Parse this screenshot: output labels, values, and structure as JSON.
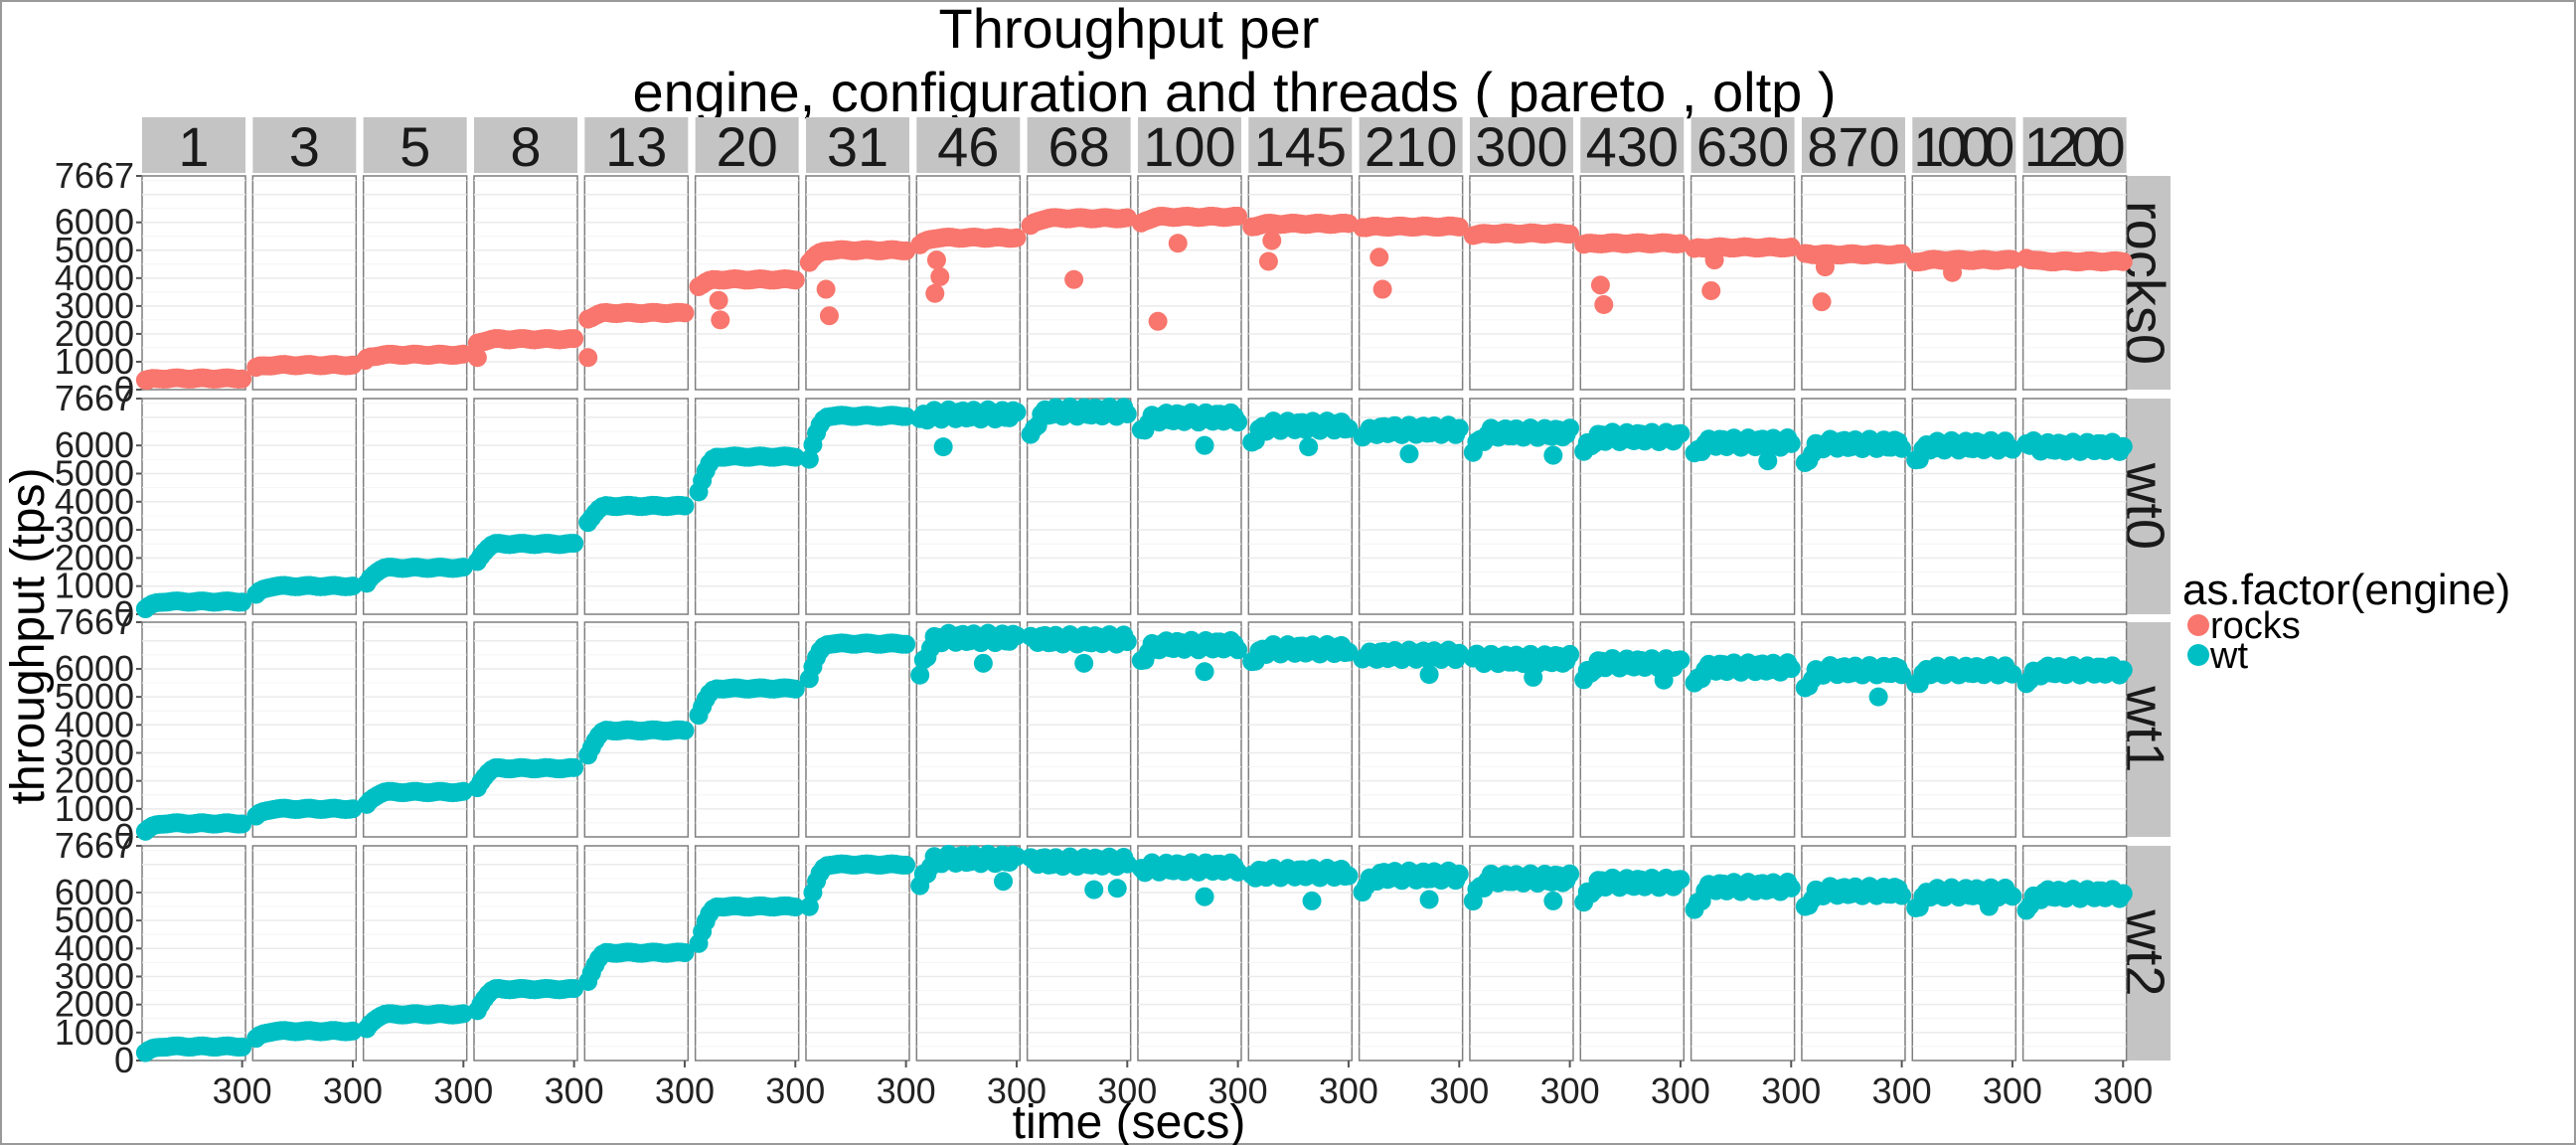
{
  "chart_data": {
    "type": "scatter",
    "title_lines": [
      "Throughput per",
      "engine, configuration and threads ( pareto , oltp )"
    ],
    "xlabel": "time (secs)",
    "ylabel": "throughput (tps)",
    "xlim": [
      0,
      310
    ],
    "ylim": [
      0,
      7667
    ],
    "x_ticks": [
      300
    ],
    "y_ticks": [
      0,
      1000,
      2000,
      3000,
      4000,
      5000,
      6000,
      7667
    ],
    "grid": true,
    "columns": [
      "1",
      "3",
      "5",
      "8",
      "13",
      "20",
      "31",
      "46",
      "68",
      "100",
      "145",
      "210",
      "300",
      "430",
      "630",
      "870",
      "1000",
      "1200"
    ],
    "rows": [
      {
        "label": "rocks0",
        "engine": "rocks"
      },
      {
        "label": "wt0",
        "engine": "wt"
      },
      {
        "label": "wt1",
        "engine": "wt"
      },
      {
        "label": "wt2",
        "engine": "wt"
      }
    ],
    "legend": {
      "title": "as.factor(engine)",
      "placement": "right",
      "entries": [
        {
          "name": "rocks",
          "color": "#F8766D"
        },
        {
          "name": "wt",
          "color": "#00BFC4"
        }
      ]
    },
    "panels": {
      "rocks0": [
        {
          "start": 320,
          "level": 400,
          "dips": [
            [
              15,
              330
            ]
          ]
        },
        {
          "start": 770,
          "level": 880,
          "dips": []
        },
        {
          "start": 1080,
          "level": 1250,
          "dips": [
            [
              5,
              1050
            ]
          ]
        },
        {
          "start": 1620,
          "level": 1810,
          "dips": [
            [
              10,
              1150
            ]
          ]
        },
        {
          "start": 2450,
          "level": 2750,
          "dips": [
            [
              10,
              1150
            ]
          ]
        },
        {
          "start": 3600,
          "level": 3950,
          "dips": [
            [
              70,
              3200
            ],
            [
              75,
              2500
            ]
          ]
        },
        {
          "start": 4400,
          "level": 5000,
          "dips": [
            [
              60,
              3600
            ],
            [
              70,
              2650
            ]
          ]
        },
        {
          "start": 5100,
          "level": 5450,
          "dips": [
            [
              60,
              4650
            ],
            [
              70,
              4050
            ],
            [
              55,
              3450
            ]
          ]
        },
        {
          "start": 5800,
          "level": 6150,
          "dips": [
            [
              140,
              3950
            ]
          ]
        },
        {
          "start": 5900,
          "level": 6200,
          "dips": [
            [
              120,
              5250
            ],
            [
              60,
              2450
            ]
          ]
        },
        {
          "start": 5800,
          "level": 5950,
          "dips": [
            [
              70,
              5350
            ],
            [
              60,
              4600
            ]
          ]
        },
        {
          "start": 5800,
          "level": 5850,
          "dips": [
            [
              60,
              4750
            ],
            [
              70,
              3600
            ]
          ]
        },
        {
          "start": 5500,
          "level": 5600,
          "dips": []
        },
        {
          "start": 5200,
          "level": 5250,
          "dips": [
            [
              60,
              3750
            ],
            [
              70,
              3050
            ]
          ]
        },
        {
          "start": 5050,
          "level": 5100,
          "dips": [
            [
              70,
              4650
            ],
            [
              60,
              3550
            ]
          ]
        },
        {
          "start": 4900,
          "level": 4850,
          "dips": [
            [
              70,
              4400
            ],
            [
              60,
              3150
            ]
          ]
        },
        {
          "start": 4550,
          "level": 4650,
          "dips": [
            [
              120,
              4200
            ]
          ]
        },
        {
          "start": 4750,
          "level": 4600,
          "dips": []
        }
      ],
      "wt0": [
        {
          "start": 100,
          "level": 450,
          "dips": []
        },
        {
          "start": 600,
          "level": 1000,
          "dips": []
        },
        {
          "start": 900,
          "level": 1650,
          "dips": []
        },
        {
          "start": 1650,
          "level": 2500,
          "dips": []
        },
        {
          "start": 3050,
          "level": 3850,
          "dips": []
        },
        {
          "start": 3900,
          "level": 5600,
          "dips": []
        },
        {
          "start": 4950,
          "level": 7050,
          "dips": []
        },
        {
          "start": 6900,
          "level": 7100,
          "dips": [
            [
              80,
              5950
            ]
          ]
        },
        {
          "start": 6100,
          "level": 7200,
          "dips": []
        },
        {
          "start": 6400,
          "level": 7000,
          "dips": [
            [
              200,
              6000
            ]
          ]
        },
        {
          "start": 5900,
          "level": 6700,
          "dips": [
            [
              180,
              5950
            ]
          ]
        },
        {
          "start": 6200,
          "level": 6550,
          "dips": [
            [
              150,
              5700
            ]
          ]
        },
        {
          "start": 5500,
          "level": 6450,
          "dips": [
            [
              250,
              5650
            ]
          ]
        },
        {
          "start": 5600,
          "level": 6300,
          "dips": []
        },
        {
          "start": 5600,
          "level": 6100,
          "dips": [
            [
              230,
              5450
            ]
          ]
        },
        {
          "start": 5150,
          "level": 6050,
          "dips": []
        },
        {
          "start": 5300,
          "level": 6000,
          "dips": []
        },
        {
          "start": 6100,
          "level": 5950,
          "dips": []
        }
      ],
      "wt1": [
        {
          "start": 100,
          "level": 480,
          "dips": []
        },
        {
          "start": 650,
          "level": 1000,
          "dips": []
        },
        {
          "start": 1000,
          "level": 1600,
          "dips": []
        },
        {
          "start": 1500,
          "level": 2450,
          "dips": []
        },
        {
          "start": 2600,
          "level": 3800,
          "dips": []
        },
        {
          "start": 4000,
          "level": 5300,
          "dips": []
        },
        {
          "start": 5200,
          "level": 6900,
          "dips": []
        },
        {
          "start": 5300,
          "level": 7100,
          "dips": [
            [
              200,
              6200
            ]
          ]
        },
        {
          "start": 7200,
          "level": 7050,
          "dips": [
            [
              170,
              6200
            ]
          ]
        },
        {
          "start": 6100,
          "level": 6850,
          "dips": [
            [
              200,
              5900
            ]
          ]
        },
        {
          "start": 6100,
          "level": 6700,
          "dips": []
        },
        {
          "start": 6300,
          "level": 6500,
          "dips": [
            [
              210,
              5800
            ]
          ]
        },
        {
          "start": 6400,
          "level": 6350,
          "dips": [
            [
              190,
              5700
            ]
          ]
        },
        {
          "start": 5400,
          "level": 6200,
          "dips": [
            [
              250,
              5600
            ]
          ]
        },
        {
          "start": 5300,
          "level": 6050,
          "dips": []
        },
        {
          "start": 5100,
          "level": 5950,
          "dips": [
            [
              230,
              5000
            ]
          ]
        },
        {
          "start": 5300,
          "level": 5950,
          "dips": []
        },
        {
          "start": 5300,
          "level": 5950,
          "dips": []
        }
      ],
      "wt2": [
        {
          "start": 200,
          "level": 500,
          "dips": []
        },
        {
          "start": 700,
          "level": 1050,
          "dips": []
        },
        {
          "start": 950,
          "level": 1650,
          "dips": []
        },
        {
          "start": 1500,
          "level": 2550,
          "dips": []
        },
        {
          "start": 2450,
          "level": 3850,
          "dips": []
        },
        {
          "start": 3700,
          "level": 5500,
          "dips": []
        },
        {
          "start": 4950,
          "level": 7000,
          "dips": []
        },
        {
          "start": 5900,
          "level": 7200,
          "dips": [
            [
              260,
              6400
            ]
          ]
        },
        {
          "start": 7300,
          "level": 7100,
          "dips": [
            [
              200,
              6100
            ],
            [
              270,
              6150
            ]
          ]
        },
        {
          "start": 6850,
          "level": 6900,
          "dips": [
            [
              200,
              5850
            ]
          ]
        },
        {
          "start": 6600,
          "level": 6700,
          "dips": [
            [
              190,
              5700
            ]
          ]
        },
        {
          "start": 5800,
          "level": 6600,
          "dips": [
            [
              210,
              5750
            ]
          ]
        },
        {
          "start": 5400,
          "level": 6500,
          "dips": [
            [
              250,
              5700
            ]
          ]
        },
        {
          "start": 5400,
          "level": 6350,
          "dips": []
        },
        {
          "start": 5100,
          "level": 6200,
          "dips": []
        },
        {
          "start": 5300,
          "level": 6050,
          "dips": []
        },
        {
          "start": 5250,
          "level": 6000,
          "dips": [
            [
              230,
              5500
            ]
          ]
        },
        {
          "start": 5150,
          "level": 5950,
          "dips": []
        }
      ]
    }
  }
}
